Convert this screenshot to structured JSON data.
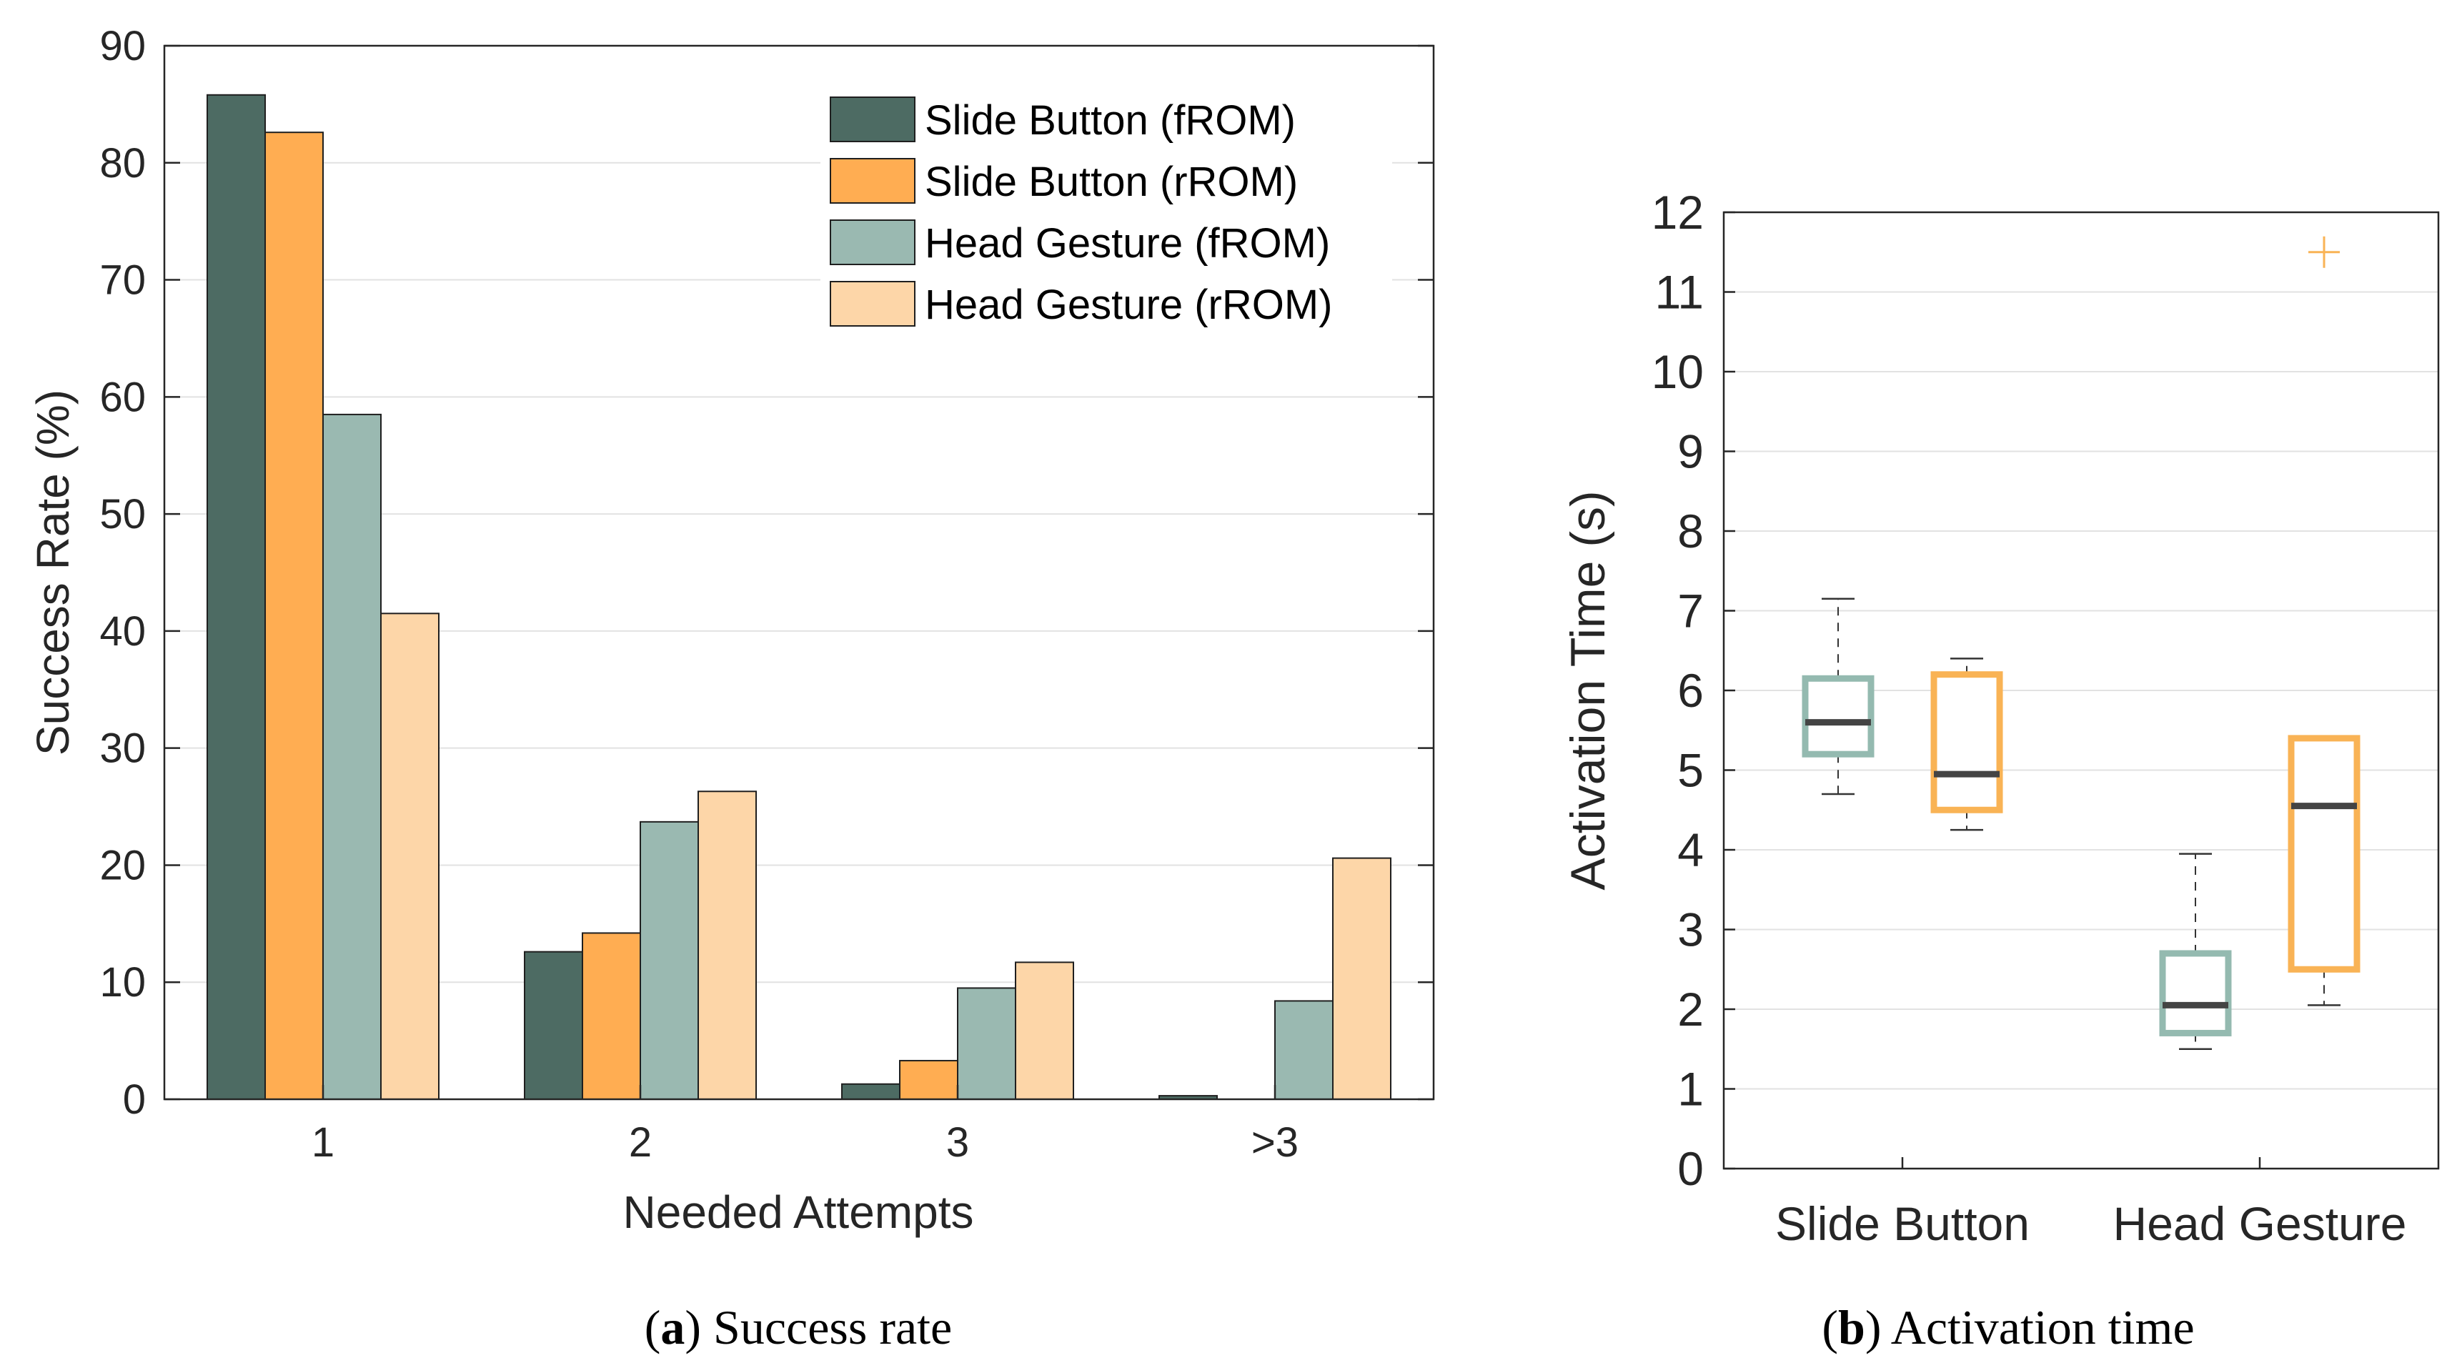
{
  "chart_data": [
    {
      "type": "bar",
      "caption_letter": "a",
      "caption_text": "Success rate",
      "categories": [
        "1",
        "2",
        "3",
        ">3"
      ],
      "xlabel": "Needed Attempts",
      "ylabel": "Success Rate (%)",
      "ylim": [
        0,
        90
      ],
      "yticks": [
        0,
        10,
        20,
        30,
        40,
        50,
        60,
        70,
        80,
        90
      ],
      "grid": true,
      "legend_position": "top-right",
      "series": [
        {
          "name": "Slide Button (fROM)",
          "color": "#4d6b63",
          "values": [
            85.8,
            12.6,
            1.3,
            0.3
          ]
        },
        {
          "name": "Slide Button (rROM)",
          "color": "#ffad52",
          "values": [
            82.6,
            14.2,
            3.3,
            0
          ]
        },
        {
          "name": "Head Gesture (fROM)",
          "color": "#9ab9b1",
          "values": [
            58.5,
            23.7,
            9.5,
            8.4
          ]
        },
        {
          "name": "Head Gesture (rROM)",
          "color": "#fdd6a8",
          "values": [
            41.5,
            26.3,
            11.7,
            20.6
          ]
        }
      ]
    },
    {
      "type": "box",
      "caption_letter": "b",
      "caption_text": "Activation time",
      "categories": [
        "Slide Button",
        "Head Gesture"
      ],
      "xlabel": "",
      "ylabel": "Activation Time (s)",
      "ylim": [
        0,
        12
      ],
      "yticks": [
        0,
        1,
        2,
        3,
        4,
        5,
        6,
        7,
        8,
        9,
        10,
        11,
        12
      ],
      "grid": true,
      "boxes": [
        {
          "category": "Slide Button",
          "group": "fROM",
          "color": "#94bab0",
          "whisker_low": 4.7,
          "q1": 5.2,
          "median": 5.6,
          "q3": 6.15,
          "whisker_high": 7.15,
          "outliers": []
        },
        {
          "category": "Slide Button",
          "group": "rROM",
          "color": "#f9b355",
          "whisker_low": 4.25,
          "q1": 4.5,
          "median": 4.95,
          "q3": 6.2,
          "whisker_high": 6.4,
          "outliers": []
        },
        {
          "category": "Head Gesture",
          "group": "fROM",
          "color": "#94bab0",
          "whisker_low": 1.5,
          "q1": 1.7,
          "median": 2.05,
          "q3": 2.7,
          "whisker_high": 3.95,
          "outliers": []
        },
        {
          "category": "Head Gesture",
          "group": "rROM",
          "color": "#f9b355",
          "whisker_low": 2.05,
          "q1": 2.5,
          "median": 4.55,
          "q3": 5.4,
          "whisker_high": 5.4,
          "outliers": [
            11.5
          ]
        }
      ]
    }
  ]
}
